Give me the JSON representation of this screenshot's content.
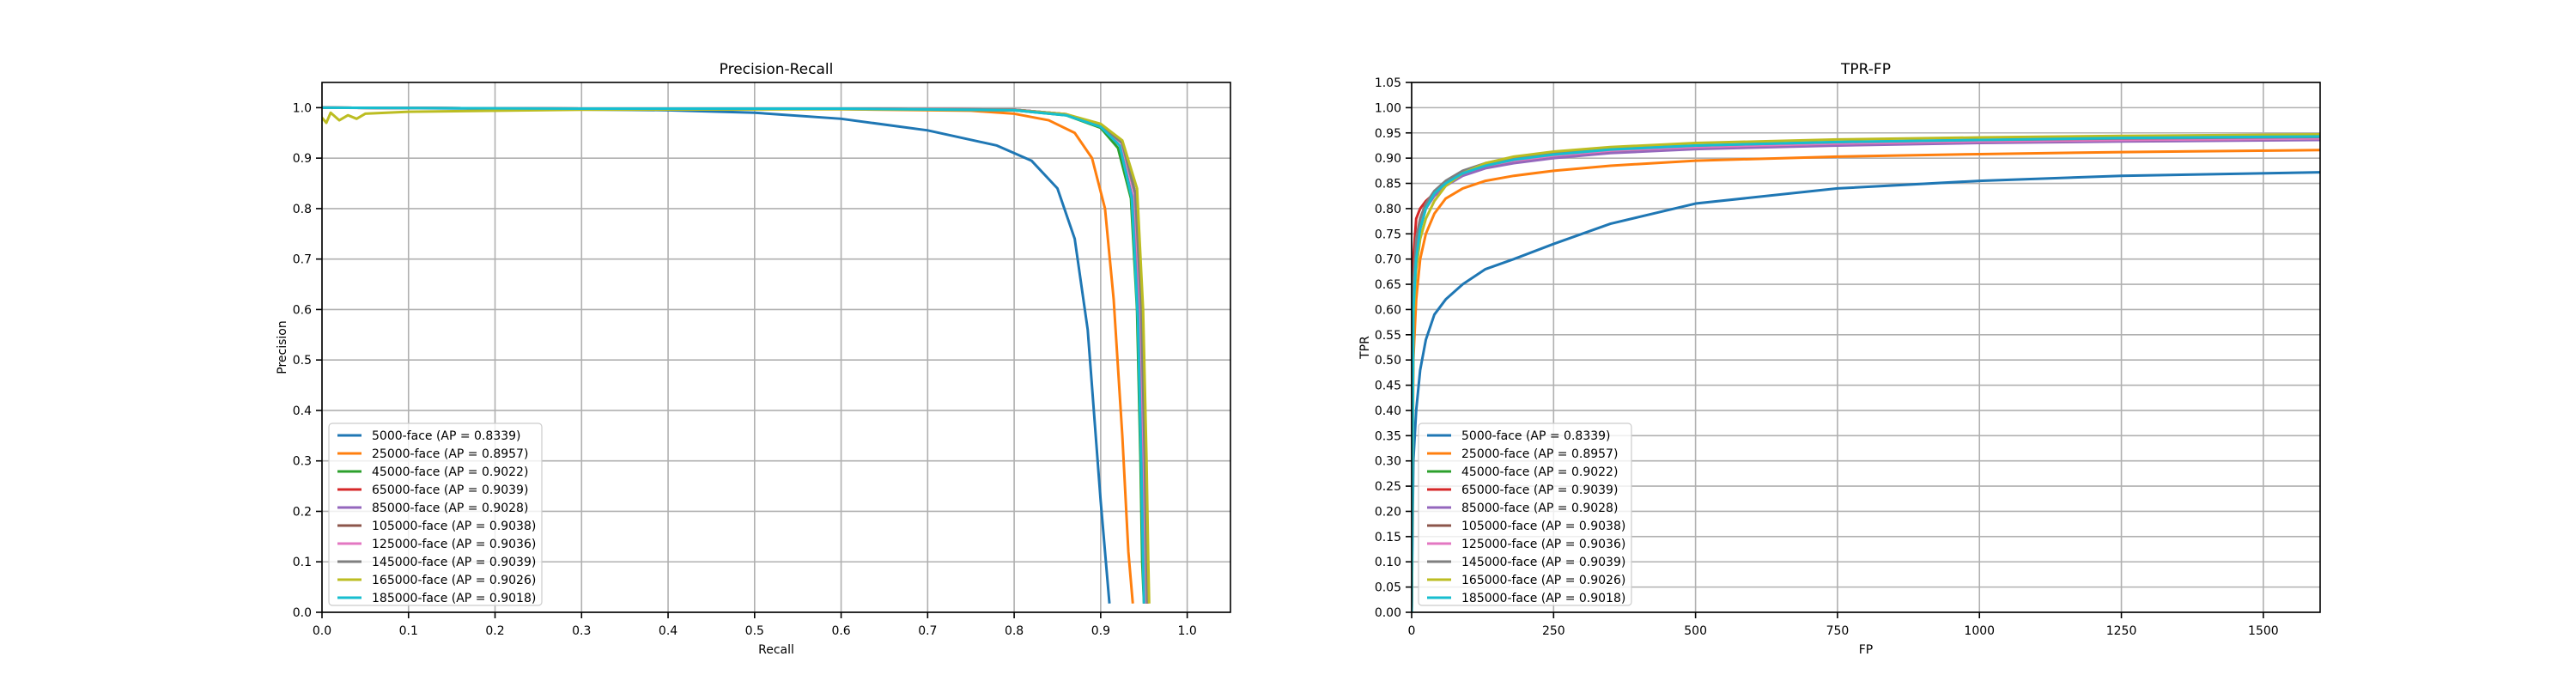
{
  "figure": {
    "legend_entries": [
      {
        "label": "5000-face (AP = 0.8339)",
        "color": "#1f77b4"
      },
      {
        "label": "25000-face (AP = 0.8957)",
        "color": "#ff7f0e"
      },
      {
        "label": "45000-face (AP = 0.9022)",
        "color": "#2ca02c"
      },
      {
        "label": "65000-face (AP = 0.9039)",
        "color": "#d62728"
      },
      {
        "label": "85000-face (AP = 0.9028)",
        "color": "#9467bd"
      },
      {
        "label": "105000-face (AP = 0.9038)",
        "color": "#8c564b"
      },
      {
        "label": "125000-face (AP = 0.9036)",
        "color": "#e377c2"
      },
      {
        "label": "145000-face (AP = 0.9039)",
        "color": "#7f7f7f"
      },
      {
        "label": "165000-face (AP = 0.9026)",
        "color": "#bcbd22"
      },
      {
        "label": "185000-face (AP = 0.9018)",
        "color": "#17becf"
      }
    ]
  },
  "chart_data": [
    {
      "type": "line",
      "title": "Precision-Recall",
      "xlabel": "Recall",
      "ylabel": "Precision",
      "xlim": [
        0,
        1.05
      ],
      "ylim": [
        0,
        1.05
      ],
      "xticks": [
        "0.0",
        "0.1",
        "0.2",
        "0.3",
        "0.4",
        "0.5",
        "0.6",
        "0.7",
        "0.8",
        "0.9",
        "1.0"
      ],
      "yticks": [
        "0.0",
        "0.1",
        "0.2",
        "0.3",
        "0.4",
        "0.5",
        "0.6",
        "0.7",
        "0.8",
        "0.9",
        "1.0"
      ],
      "grid": true,
      "legend_position": "lower-left",
      "series": [
        {
          "name": "5000-face (AP = 0.8339)",
          "color": "#1f77b4",
          "x": [
            0.0,
            0.2,
            0.4,
            0.5,
            0.6,
            0.7,
            0.78,
            0.82,
            0.85,
            0.87,
            0.885,
            0.9,
            0.905,
            0.91
          ],
          "y": [
            1.0,
            0.998,
            0.995,
            0.99,
            0.978,
            0.955,
            0.925,
            0.895,
            0.84,
            0.74,
            0.56,
            0.22,
            0.12,
            0.02
          ]
        },
        {
          "name": "25000-face (AP = 0.8957)",
          "color": "#ff7f0e",
          "x": [
            0.0,
            0.3,
            0.6,
            0.75,
            0.8,
            0.84,
            0.87,
            0.89,
            0.905,
            0.915,
            0.925,
            0.932,
            0.937
          ],
          "y": [
            1.0,
            0.998,
            0.997,
            0.994,
            0.988,
            0.975,
            0.95,
            0.9,
            0.8,
            0.62,
            0.35,
            0.12,
            0.02
          ]
        },
        {
          "name": "45000-face (AP = 0.9022)",
          "color": "#2ca02c",
          "x": [
            0.0,
            0.3,
            0.6,
            0.8,
            0.86,
            0.9,
            0.92,
            0.935,
            0.942,
            0.946,
            0.948,
            0.95
          ],
          "y": [
            1.0,
            0.998,
            0.998,
            0.995,
            0.985,
            0.96,
            0.92,
            0.82,
            0.6,
            0.3,
            0.1,
            0.02
          ]
        },
        {
          "name": "65000-face (AP = 0.9039)",
          "color": "#d62728",
          "x": [
            0.0,
            0.3,
            0.6,
            0.8,
            0.86,
            0.9,
            0.925,
            0.94,
            0.947,
            0.95,
            0.952,
            0.953
          ],
          "y": [
            1.0,
            0.998,
            0.998,
            0.996,
            0.987,
            0.965,
            0.93,
            0.83,
            0.6,
            0.3,
            0.1,
            0.02
          ]
        },
        {
          "name": "85000-face (AP = 0.9028)",
          "color": "#9467bd",
          "x": [
            0.0,
            0.3,
            0.6,
            0.8,
            0.86,
            0.9,
            0.922,
            0.937,
            0.944,
            0.948,
            0.95,
            0.951
          ],
          "y": [
            1.0,
            0.998,
            0.998,
            0.995,
            0.986,
            0.963,
            0.925,
            0.82,
            0.58,
            0.28,
            0.1,
            0.02
          ]
        },
        {
          "name": "105000-face (AP = 0.9038)",
          "color": "#8c564b",
          "x": [
            0.0,
            0.3,
            0.6,
            0.8,
            0.86,
            0.9,
            0.925,
            0.94,
            0.947,
            0.951,
            0.953,
            0.954
          ],
          "y": [
            1.0,
            0.998,
            0.998,
            0.996,
            0.987,
            0.965,
            0.93,
            0.83,
            0.6,
            0.3,
            0.1,
            0.02
          ]
        },
        {
          "name": "125000-face (AP = 0.9036)",
          "color": "#e377c2",
          "x": [
            0.0,
            0.3,
            0.6,
            0.8,
            0.86,
            0.9,
            0.924,
            0.939,
            0.946,
            0.95,
            0.952,
            0.953
          ],
          "y": [
            1.0,
            0.998,
            0.998,
            0.996,
            0.987,
            0.964,
            0.93,
            0.83,
            0.6,
            0.3,
            0.1,
            0.02
          ]
        },
        {
          "name": "145000-face (AP = 0.9039)",
          "color": "#7f7f7f",
          "x": [
            0.0,
            0.3,
            0.6,
            0.8,
            0.86,
            0.9,
            0.925,
            0.94,
            0.947,
            0.951,
            0.953,
            0.954
          ],
          "y": [
            1.0,
            0.998,
            0.998,
            0.996,
            0.987,
            0.965,
            0.93,
            0.83,
            0.6,
            0.3,
            0.1,
            0.02
          ]
        },
        {
          "name": "165000-face (AP = 0.9026)",
          "color": "#bcbd22",
          "x": [
            0.0,
            0.005,
            0.01,
            0.02,
            0.03,
            0.04,
            0.05,
            0.1,
            0.3,
            0.6,
            0.8,
            0.86,
            0.9,
            0.925,
            0.942,
            0.949,
            0.953,
            0.955,
            0.956
          ],
          "y": [
            0.98,
            0.97,
            0.99,
            0.975,
            0.985,
            0.978,
            0.988,
            0.992,
            0.996,
            0.997,
            0.995,
            0.987,
            0.968,
            0.935,
            0.84,
            0.6,
            0.3,
            0.1,
            0.02
          ]
        },
        {
          "name": "185000-face (AP = 0.9018)",
          "color": "#17becf",
          "x": [
            0.0,
            0.3,
            0.6,
            0.8,
            0.86,
            0.9,
            0.922,
            0.936,
            0.943,
            0.947,
            0.949,
            0.95
          ],
          "y": [
            1.0,
            0.998,
            0.998,
            0.995,
            0.985,
            0.962,
            0.925,
            0.82,
            0.58,
            0.28,
            0.1,
            0.02
          ]
        }
      ]
    },
    {
      "type": "line",
      "title": "TPR-FP",
      "xlabel": "FP",
      "ylabel": "TPR",
      "xlim": [
        0,
        1600
      ],
      "ylim": [
        0,
        1.05
      ],
      "xticks": [
        "0",
        "250",
        "500",
        "750",
        "1000",
        "1250",
        "1500"
      ],
      "yticks": [
        "0.00",
        "0.05",
        "0.10",
        "0.15",
        "0.20",
        "0.25",
        "0.30",
        "0.35",
        "0.40",
        "0.45",
        "0.50",
        "0.55",
        "0.60",
        "0.65",
        "0.70",
        "0.75",
        "0.80",
        "0.85",
        "0.90",
        "0.95",
        "1.00",
        "1.05"
      ],
      "grid": true,
      "legend_position": "lower-left",
      "series": [
        {
          "name": "5000-face (AP = 0.8339)",
          "color": "#1f77b4",
          "x": [
            0,
            3,
            8,
            15,
            25,
            40,
            60,
            90,
            130,
            180,
            250,
            350,
            500,
            750,
            1000,
            1250,
            1600
          ],
          "y": [
            0.0,
            0.3,
            0.4,
            0.48,
            0.54,
            0.59,
            0.62,
            0.65,
            0.68,
            0.7,
            0.73,
            0.77,
            0.81,
            0.84,
            0.855,
            0.865,
            0.872
          ]
        },
        {
          "name": "25000-face (AP = 0.8957)",
          "color": "#ff7f0e",
          "x": [
            0,
            3,
            8,
            15,
            25,
            40,
            60,
            90,
            130,
            180,
            250,
            350,
            500,
            750,
            1000,
            1250,
            1600
          ],
          "y": [
            0.0,
            0.5,
            0.62,
            0.7,
            0.75,
            0.79,
            0.82,
            0.84,
            0.855,
            0.865,
            0.875,
            0.885,
            0.895,
            0.903,
            0.908,
            0.912,
            0.916
          ]
        },
        {
          "name": "45000-face (AP = 0.9022)",
          "color": "#2ca02c",
          "x": [
            0,
            3,
            8,
            15,
            25,
            40,
            60,
            90,
            130,
            180,
            250,
            350,
            500,
            750,
            1000,
            1250,
            1600
          ],
          "y": [
            0.0,
            0.6,
            0.7,
            0.76,
            0.8,
            0.83,
            0.85,
            0.87,
            0.885,
            0.895,
            0.905,
            0.915,
            0.922,
            0.928,
            0.932,
            0.935,
            0.938
          ]
        },
        {
          "name": "65000-face (AP = 0.9039)",
          "color": "#d62728",
          "x": [
            0,
            3,
            8,
            15,
            25,
            40,
            60,
            90,
            130,
            180,
            250,
            350,
            500,
            750,
            1000,
            1250,
            1600
          ],
          "y": [
            0.0,
            0.7,
            0.78,
            0.8,
            0.815,
            0.83,
            0.85,
            0.87,
            0.885,
            0.895,
            0.905,
            0.915,
            0.923,
            0.93,
            0.934,
            0.937,
            0.94
          ]
        },
        {
          "name": "85000-face (AP = 0.9028)",
          "color": "#9467bd",
          "x": [
            0,
            3,
            8,
            15,
            25,
            40,
            60,
            90,
            130,
            180,
            250,
            350,
            500,
            750,
            1000,
            1250,
            1600
          ],
          "y": [
            0.0,
            0.62,
            0.72,
            0.77,
            0.8,
            0.825,
            0.845,
            0.865,
            0.88,
            0.89,
            0.9,
            0.91,
            0.918,
            0.925,
            0.93,
            0.933,
            0.936
          ]
        },
        {
          "name": "105000-face (AP = 0.9038)",
          "color": "#8c564b",
          "x": [
            0,
            3,
            8,
            15,
            25,
            40,
            60,
            90,
            130,
            180,
            250,
            350,
            500,
            750,
            1000,
            1250,
            1600
          ],
          "y": [
            0.0,
            0.64,
            0.73,
            0.78,
            0.81,
            0.83,
            0.85,
            0.87,
            0.885,
            0.895,
            0.905,
            0.915,
            0.922,
            0.929,
            0.933,
            0.936,
            0.939
          ]
        },
        {
          "name": "125000-face (AP = 0.9036)",
          "color": "#e377c2",
          "x": [
            0,
            3,
            8,
            15,
            25,
            40,
            60,
            90,
            130,
            180,
            250,
            350,
            500,
            750,
            1000,
            1250,
            1600
          ],
          "y": [
            0.0,
            0.63,
            0.72,
            0.775,
            0.805,
            0.83,
            0.85,
            0.87,
            0.885,
            0.895,
            0.905,
            0.915,
            0.922,
            0.929,
            0.933,
            0.936,
            0.939
          ]
        },
        {
          "name": "145000-face (AP = 0.9039)",
          "color": "#7f7f7f",
          "x": [
            0,
            3,
            8,
            15,
            25,
            40,
            60,
            90,
            130,
            180,
            250,
            350,
            500,
            750,
            1000,
            1250,
            1600
          ],
          "y": [
            0.0,
            0.65,
            0.74,
            0.78,
            0.81,
            0.835,
            0.855,
            0.875,
            0.89,
            0.9,
            0.91,
            0.918,
            0.925,
            0.932,
            0.936,
            0.939,
            0.942
          ]
        },
        {
          "name": "165000-face (AP = 0.9026)",
          "color": "#bcbd22",
          "x": [
            0,
            3,
            8,
            15,
            25,
            40,
            60,
            90,
            130,
            180,
            250,
            350,
            500,
            750,
            1000,
            1250,
            1600
          ],
          "y": [
            0.0,
            0.58,
            0.68,
            0.74,
            0.78,
            0.815,
            0.845,
            0.87,
            0.89,
            0.903,
            0.913,
            0.922,
            0.93,
            0.937,
            0.941,
            0.944,
            0.947
          ]
        },
        {
          "name": "185000-face (AP = 0.9018)",
          "color": "#17becf",
          "x": [
            0,
            3,
            8,
            15,
            25,
            40,
            60,
            90,
            130,
            180,
            250,
            350,
            500,
            750,
            1000,
            1250,
            1600
          ],
          "y": [
            0.0,
            0.6,
            0.7,
            0.76,
            0.8,
            0.83,
            0.85,
            0.87,
            0.885,
            0.897,
            0.907,
            0.917,
            0.925,
            0.932,
            0.936,
            0.94,
            0.943
          ]
        }
      ]
    }
  ]
}
